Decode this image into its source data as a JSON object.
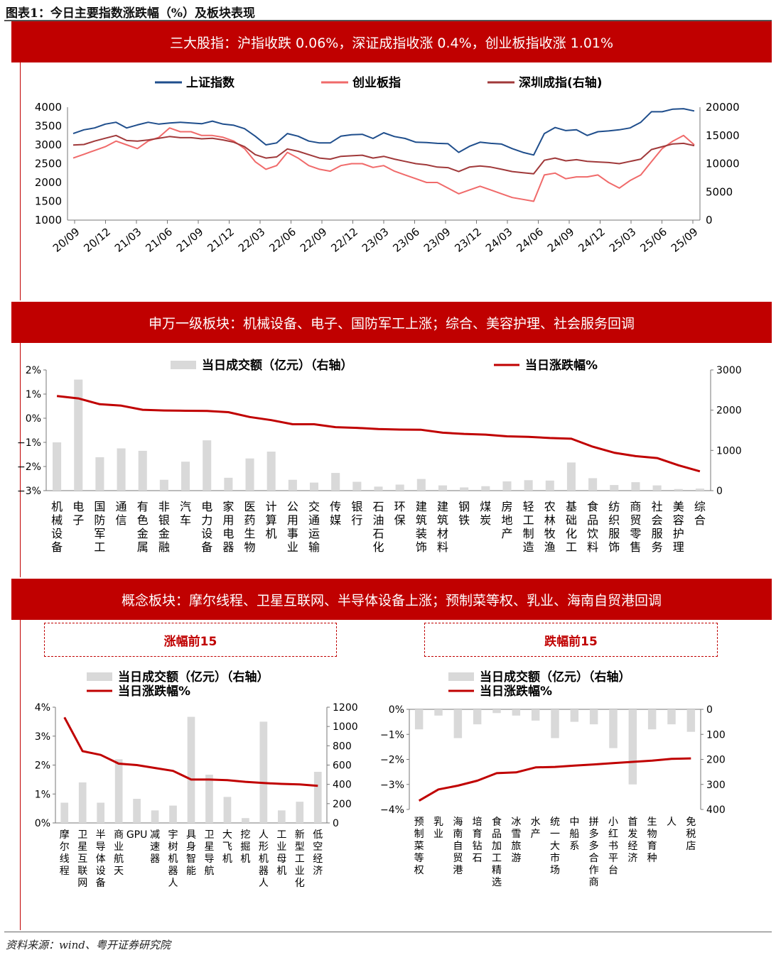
{
  "page_title": "图表1：今日主要指数涨跌幅（%）及板块表现",
  "banners": [
    "三大股指：沪指收跌 0.06%，深证成指收涨 0.4%，创业板指收涨 1.01%",
    "申万一级板块：机械设备、电子、国防军工上涨；综合、美容护理、社会服务回调",
    "概念板块：摩尔线程、卫星互联网、半导体设备上涨；预制菜等权、乳业、海南自贸港回调"
  ],
  "subheads": [
    "涨幅前15",
    "跌幅前15"
  ],
  "source": "资料来源：wind、粤开证券研究院",
  "colors": {
    "red": "#c00000",
    "navy": "#1f4e8c",
    "pink": "#f06a6a",
    "maroon": "#a0393a",
    "bar": "#d9d9d9"
  },
  "chart_data": [
    {
      "type": "line",
      "legend": [
        "上证指数",
        "创业板指",
        "深圳成指(右轴)"
      ],
      "x_ticks": [
        "20/09",
        "20/12",
        "21/03",
        "21/06",
        "21/09",
        "21/12",
        "22/03",
        "22/06",
        "22/09",
        "22/12",
        "23/03",
        "23/06",
        "23/09",
        "23/12",
        "24/03",
        "24/06",
        "24/09",
        "24/12",
        "25/03",
        "25/06",
        "25/09"
      ],
      "ylim": [
        1000,
        4000
      ],
      "y_ticks": [
        "4000",
        "3500",
        "3000",
        "2500",
        "2000",
        "1500",
        "1000"
      ],
      "y2lim": [
        0,
        20000
      ],
      "y2_ticks": [
        "20000",
        "15000",
        "10000",
        "5000",
        "0"
      ],
      "series": [
        {
          "name": "上证指数",
          "axis": "left",
          "color": "#1f4e8c",
          "values": [
            3300,
            3400,
            3450,
            3550,
            3600,
            3450,
            3530,
            3600,
            3550,
            3580,
            3600,
            3580,
            3560,
            3630,
            3550,
            3520,
            3430,
            3230,
            3000,
            3050,
            3300,
            3230,
            3100,
            3050,
            3050,
            3230,
            3270,
            3280,
            3170,
            3320,
            3220,
            3170,
            3070,
            3060,
            3040,
            3030,
            2800,
            2960,
            3070,
            3040,
            3020,
            2900,
            2800,
            2730,
            3300,
            3460,
            3380,
            3400,
            3250,
            3350,
            3370,
            3400,
            3450,
            3600,
            3880,
            3880,
            3950,
            3960,
            3900
          ]
        },
        {
          "name": "创业板指",
          "axis": "left",
          "color": "#f06a6a",
          "values": [
            2650,
            2750,
            2850,
            2950,
            3100,
            3000,
            2900,
            3100,
            3200,
            3450,
            3350,
            3350,
            3250,
            3250,
            3200,
            3100,
            2900,
            2550,
            2350,
            2450,
            2800,
            2650,
            2450,
            2350,
            2300,
            2450,
            2500,
            2500,
            2400,
            2450,
            2300,
            2200,
            2100,
            2000,
            2000,
            1850,
            1700,
            1800,
            1900,
            1800,
            1700,
            1600,
            1550,
            1500,
            2200,
            2250,
            2100,
            2150,
            2150,
            2200,
            2000,
            1850,
            2050,
            2200,
            2550,
            2900,
            3100,
            3250,
            3000
          ]
        },
        {
          "name": "深圳成指(右轴)",
          "axis": "right",
          "color": "#a0393a",
          "values": [
            13300,
            13400,
            14000,
            14500,
            15000,
            14100,
            14000,
            14200,
            14500,
            14800,
            14600,
            14600,
            14400,
            14500,
            14200,
            13800,
            13000,
            11600,
            11000,
            11200,
            12600,
            12200,
            11600,
            11000,
            10800,
            11300,
            11400,
            11500,
            11000,
            11300,
            10800,
            10400,
            10000,
            9800,
            9400,
            9300,
            8600,
            9400,
            9600,
            9400,
            9000,
            8600,
            8400,
            8200,
            10600,
            11000,
            10500,
            10700,
            10400,
            10300,
            10200,
            10000,
            10400,
            10800,
            12500,
            13000,
            13500,
            13600,
            13200
          ]
        }
      ]
    },
    {
      "type": "bar",
      "legend": [
        "当日成交额（亿元）（右轴）",
        "当日涨跌幅%"
      ],
      "categories": [
        "机械设备",
        "电子",
        "国防军工",
        "通信",
        "有色金属",
        "非银金融",
        "汽车",
        "电力设备",
        "家用电器",
        "医药生物",
        "计算机",
        "公用事业",
        "交通运输",
        "传媒",
        "银行",
        "石油石化",
        "环保",
        "建筑装饰",
        "建筑材料",
        "钢铁",
        "煤炭",
        "房地产",
        "轻工制造",
        "农林牧渔",
        "基础化工",
        "食品饮料",
        "纺织服饰",
        "商贸零售",
        "社会服务",
        "美容护理",
        "综合"
      ],
      "series": [
        {
          "name": "当日涨跌幅%",
          "axis": "left",
          "values": [
            0.92,
            0.82,
            0.58,
            0.52,
            0.35,
            0.32,
            0.31,
            0.3,
            0.25,
            0.05,
            -0.08,
            -0.25,
            -0.25,
            -0.37,
            -0.4,
            -0.45,
            -0.47,
            -0.48,
            -0.6,
            -0.65,
            -0.68,
            -0.75,
            -0.77,
            -0.82,
            -0.85,
            -1.18,
            -1.43,
            -1.57,
            -1.65,
            -1.95,
            -2.2
          ]
        },
        {
          "name": "当日成交额（亿元）（右轴）",
          "axis": "right",
          "values": [
            1200,
            2760,
            830,
            1050,
            990,
            270,
            720,
            1250,
            320,
            800,
            970,
            270,
            200,
            440,
            220,
            100,
            150,
            290,
            130,
            80,
            110,
            230,
            260,
            250,
            700,
            310,
            140,
            210,
            130,
            40,
            50
          ]
        }
      ],
      "ylim": [
        -3,
        2
      ],
      "y_ticks": [
        "2%",
        "1%",
        "0%",
        "−1%",
        "−2%",
        "−3%"
      ],
      "y2lim": [
        0,
        3000
      ],
      "y2_ticks": [
        "3000",
        "2000",
        "1000",
        "0"
      ]
    },
    {
      "type": "bar",
      "title": "涨幅前15",
      "legend": [
        "当日成交额（亿元）（右轴）",
        "当日涨跌幅%"
      ],
      "categories": [
        "摩尔线程",
        "卫星互联网",
        "半导体设备",
        "商业航天",
        "GPU",
        "减速器",
        "宇树机器人",
        "具身智能",
        "卫星导航",
        "大飞机",
        "挖掘机",
        "人形机器人",
        "工业母机",
        "新型工业化",
        "低空经济"
      ],
      "series": [
        {
          "name": "当日涨跌幅%",
          "axis": "left",
          "values": [
            3.65,
            2.48,
            2.35,
            2.05,
            2.0,
            1.9,
            1.8,
            1.5,
            1.5,
            1.48,
            1.42,
            1.38,
            1.35,
            1.33,
            1.28
          ]
        },
        {
          "name": "当日成交额（亿元）（右轴）",
          "axis": "right",
          "values": [
            210,
            420,
            210,
            660,
            250,
            130,
            180,
            1100,
            500,
            270,
            50,
            1050,
            130,
            220,
            530
          ]
        }
      ],
      "ylim": [
        0,
        4
      ],
      "y_ticks": [
        "4%",
        "3%",
        "2%",
        "1%",
        "0%"
      ],
      "y2lim": [
        0,
        1200
      ],
      "y2_ticks": [
        "1200",
        "1000",
        "800",
        "600",
        "400",
        "200",
        "0"
      ]
    },
    {
      "type": "bar",
      "title": "跌幅前15",
      "legend": [
        "当日成交额（亿元）（右轴）",
        "当日涨跌幅%"
      ],
      "categories": [
        "预制菜等权",
        "乳业",
        "海南自贸港",
        "培育钻石",
        "食品加工精选",
        "冰雪旅游",
        "水产",
        "统一大市场",
        "中船系",
        "拼多多合作商",
        "小红书平台",
        "首发经济",
        "生物育种",
        "人",
        "免税店"
      ],
      "series": [
        {
          "name": "当日涨跌幅%",
          "axis": "left",
          "values": [
            -3.65,
            -3.2,
            -3.05,
            -2.85,
            -2.55,
            -2.52,
            -2.32,
            -2.3,
            -2.25,
            -2.2,
            -2.15,
            -2.1,
            -2.05,
            -1.98,
            -1.96
          ]
        },
        {
          "name": "当日成交额（亿元）（右轴）",
          "axis": "right",
          "values": [
            80,
            25,
            115,
            60,
            15,
            25,
            45,
            115,
            50,
            60,
            155,
            300,
            80,
            60,
            90
          ]
        }
      ],
      "ylim": [
        -4,
        0
      ],
      "y_ticks": [
        "0%",
        "−1%",
        "−2%",
        "−3%",
        "−4%"
      ],
      "y2lim": [
        0,
        400
      ],
      "y2_ticks": [
        "0",
        "100",
        "200",
        "300",
        "400"
      ]
    }
  ]
}
